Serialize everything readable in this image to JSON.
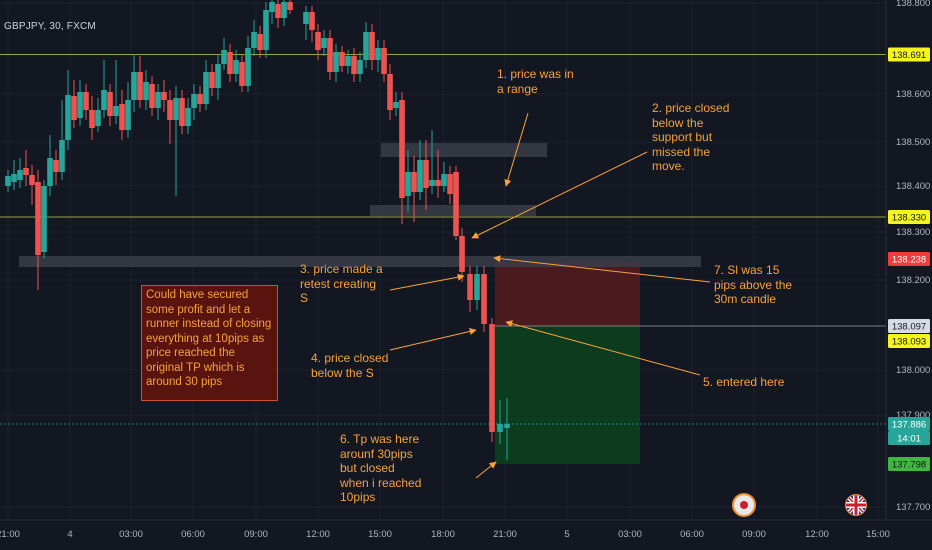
{
  "symbol": "GBPJPY, 30, FXCM",
  "annotations": {
    "n1": "1. price was in\na range",
    "n2": "2. price closed\nbelow the\nsupport but\nmissed the\nmove.",
    "n3": "3. price made a\nretest creating\nS",
    "n4": "4. price closed\nbelow the S",
    "n5": "5. entered here",
    "n6": "6. Tp was here\narounf 30pips\nbut closed\nwhen i reached\n10pips",
    "n7": "7. Sl was 15\npips above the\n30m candle",
    "box": "Could have secured some profit and let a runner instead of closing everything at 10pips as price reached the original TP which is around 30 pips"
  },
  "colors": {
    "background": "#131722",
    "bull": "#26a69a",
    "bear": "#ef5350",
    "annotation": "#f7a23a",
    "level_line": "#c8d44a",
    "stop_zone": "#4a1a1f",
    "target_zone": "#0c3b1e"
  },
  "price_axis": {
    "ticks": [
      "138.800",
      "138.600",
      "138.500",
      "138.400",
      "138.300",
      "138.200",
      "138.000",
      "137.900",
      "137.700"
    ],
    "badges": [
      {
        "value": "138.691",
        "bg": "#f5f519",
        "fg": "#131722"
      },
      {
        "value": "138.330",
        "bg": "#f5f519",
        "fg": "#131722"
      },
      {
        "value": "138.238",
        "bg": "#ef3d3d",
        "fg": "#ffffff"
      },
      {
        "value": "138.097",
        "bg": "#d7dbe3",
        "fg": "#131722"
      },
      {
        "value": "138.093",
        "bg": "#f5f519",
        "fg": "#131722"
      },
      {
        "value": "137.886",
        "bg": "#26a69a",
        "fg": "#ffffff"
      },
      {
        "value": "14:01",
        "bg": "#26a69a",
        "fg": "#ffffff"
      },
      {
        "value": "137.798",
        "bg": "#3fb83f",
        "fg": "#131722"
      }
    ]
  },
  "time_axis": [
    "21:00",
    "4",
    "03:00",
    "06:00",
    "09:00",
    "12:00",
    "15:00",
    "18:00",
    "21:00",
    "5",
    "03:00",
    "06:00",
    "09:00",
    "12:00",
    "15:00"
  ],
  "icons": [
    "event-badge-icon",
    "uk-flag-icon"
  ]
}
